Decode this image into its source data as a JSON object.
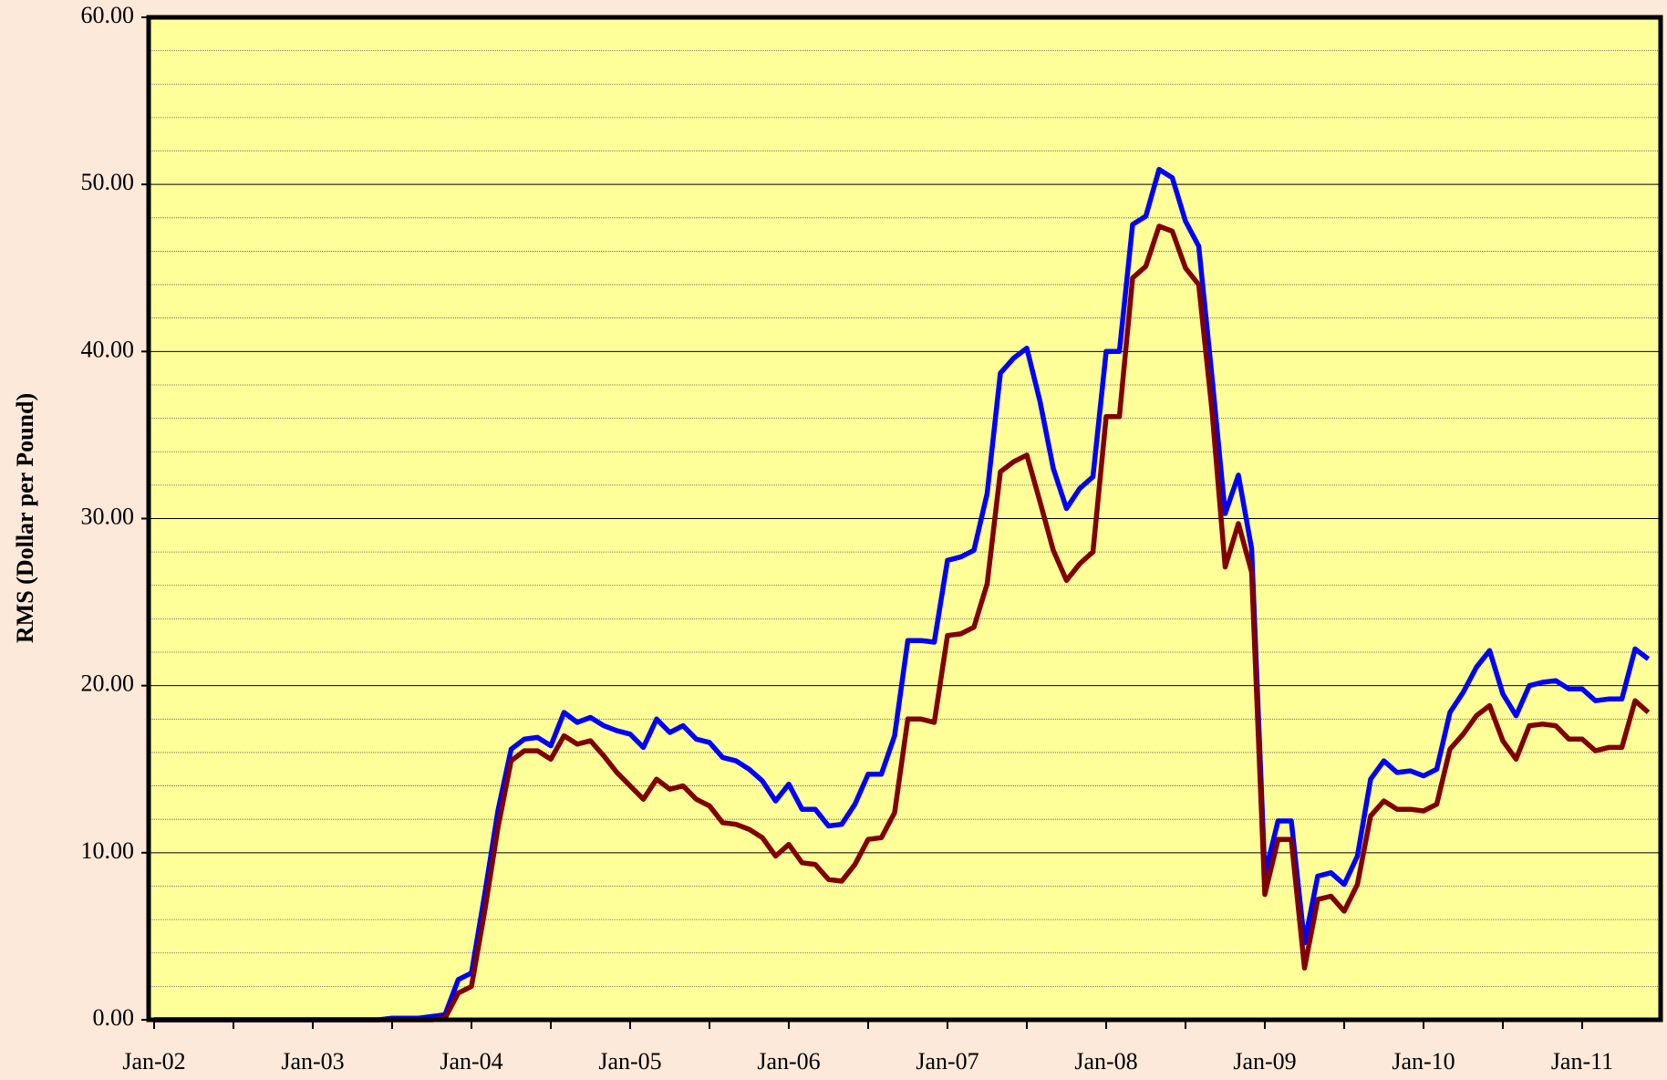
{
  "chart_data": {
    "type": "line",
    "y_label": "RMS (Dollar per Pound)",
    "categories": [
      "Jan-02",
      null,
      null,
      null,
      null,
      null,
      null,
      null,
      null,
      null,
      null,
      null,
      "Jan-03",
      null,
      null,
      null,
      null,
      null,
      null,
      null,
      null,
      null,
      null,
      null,
      "Jan-04",
      null,
      null,
      null,
      null,
      null,
      null,
      null,
      null,
      null,
      null,
      null,
      "Jan-05",
      null,
      null,
      null,
      null,
      null,
      null,
      null,
      null,
      null,
      null,
      null,
      "Jan-06",
      null,
      null,
      null,
      null,
      null,
      null,
      null,
      null,
      null,
      null,
      null,
      "Jan-07",
      null,
      null,
      null,
      null,
      null,
      null,
      null,
      null,
      null,
      null,
      null,
      "Jan-08",
      null,
      null,
      null,
      null,
      null,
      null,
      null,
      null,
      null,
      null,
      null,
      "Jan-09",
      null,
      null,
      null,
      null,
      null,
      null,
      null,
      null,
      null,
      null,
      null,
      "Jan-10",
      null,
      null,
      null,
      null,
      null,
      null,
      null,
      null,
      null,
      null,
      null,
      "Jan-11",
      null,
      null,
      null,
      null,
      null
    ],
    "series": [
      {
        "color": "#0000ff",
        "values": [
          0,
          0,
          0,
          0,
          0,
          0,
          0,
          0,
          0,
          0,
          0,
          0,
          0,
          0,
          0,
          0,
          0,
          0,
          0.1,
          0.1,
          0.1,
          0.2,
          0.3,
          2.4,
          2.8,
          7.5,
          12.5,
          16.2,
          16.8,
          16.9,
          16.4,
          18.4,
          17.8,
          18.1,
          17.6,
          17.3,
          17.1,
          16.3,
          18.0,
          17.2,
          17.6,
          16.8,
          16.6,
          15.7,
          15.5,
          15.0,
          14.3,
          13.1,
          14.1,
          12.6,
          12.6,
          11.6,
          11.7,
          12.9,
          14.7,
          14.7,
          17.0,
          22.7,
          22.7,
          22.6,
          27.5,
          27.7,
          28.1,
          31.5,
          38.7,
          39.6,
          40.2,
          37.0,
          33.0,
          30.6,
          31.8,
          32.5,
          40.0,
          40.0,
          47.6,
          48.1,
          50.9,
          50.4,
          47.8,
          46.3,
          38.5,
          30.3,
          32.6,
          28.2,
          8.7,
          11.9,
          11.9,
          4.6,
          8.6,
          8.8,
          8.1,
          9.8,
          14.4,
          15.5,
          14.8,
          14.9,
          14.6,
          15.0,
          18.4,
          19.6,
          21.1,
          22.1,
          19.5,
          18.2,
          20.0,
          20.2,
          20.3,
          19.8,
          19.8,
          19.1,
          19.2,
          19.2,
          22.2,
          21.6
        ]
      },
      {
        "color": "#800000",
        "values": [
          0,
          0,
          0,
          0,
          0,
          0,
          0,
          0,
          0,
          0,
          0,
          0,
          0,
          0,
          0,
          0,
          0,
          0,
          0,
          0,
          0,
          0,
          0.1,
          1.6,
          2.0,
          6.5,
          11.5,
          15.5,
          16.1,
          16.1,
          15.6,
          17.0,
          16.5,
          16.7,
          15.8,
          14.8,
          14.0,
          13.2,
          14.4,
          13.8,
          14.0,
          13.2,
          12.8,
          11.8,
          11.7,
          11.4,
          10.9,
          9.8,
          10.5,
          9.4,
          9.3,
          8.4,
          8.3,
          9.3,
          10.8,
          10.9,
          12.4,
          18.0,
          18.0,
          17.8,
          23.0,
          23.1,
          23.5,
          26.1,
          32.8,
          33.4,
          33.8,
          31.0,
          28.1,
          26.3,
          27.3,
          28.0,
          36.1,
          36.1,
          44.4,
          45.1,
          47.5,
          47.2,
          45.0,
          44.0,
          36.5,
          27.1,
          29.7,
          26.8,
          7.5,
          10.8,
          10.8,
          3.1,
          7.2,
          7.4,
          6.5,
          8.1,
          12.2,
          13.1,
          12.6,
          12.6,
          12.5,
          12.9,
          16.2,
          17.1,
          18.2,
          18.8,
          16.7,
          15.6,
          17.6,
          17.7,
          17.6,
          16.8,
          16.8,
          16.1,
          16.3,
          16.3,
          19.1,
          18.4
        ]
      }
    ],
    "ylim": [
      0,
      60
    ],
    "yticks": [
      {
        "value": 0,
        "label": "0.00"
      },
      {
        "value": 10,
        "label": "10.00"
      },
      {
        "value": 20,
        "label": "20.00"
      },
      {
        "value": 30,
        "label": "30.00"
      },
      {
        "value": 40,
        "label": "40.00"
      },
      {
        "value": 50,
        "label": "50.00"
      },
      {
        "value": 60,
        "label": "60.00"
      }
    ],
    "minor_yticks": [
      2,
      4,
      6,
      8,
      12,
      14,
      16,
      18,
      22,
      24,
      26,
      28,
      32,
      34,
      36,
      38,
      42,
      44,
      46,
      48,
      52,
      54,
      56,
      58
    ],
    "grid": true,
    "plot_background": "#ffff99"
  }
}
